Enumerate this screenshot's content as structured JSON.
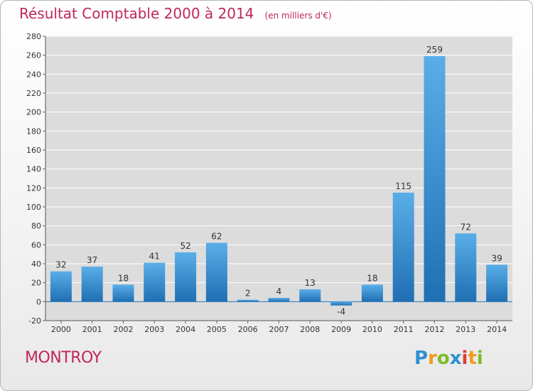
{
  "header": {
    "title": "Résultat Comptable 2000 à 2014",
    "subtitle": "(en milliers d'€)"
  },
  "footer": {
    "commune": "MONTROY",
    "logo_text": "Proxiti"
  },
  "colors": {
    "title": "#c0265d",
    "bar_light": "#5aaee8",
    "bar_dark": "#1f6fb3",
    "plot_bg": "#dcdcdc",
    "grid": "#ffffff"
  },
  "chart_data": {
    "type": "bar",
    "title": "Résultat Comptable 2000 à 2014",
    "subtitle": "(en milliers d'€)",
    "xlabel": "",
    "ylabel": "",
    "categories": [
      "2000",
      "2001",
      "2002",
      "2003",
      "2004",
      "2005",
      "2006",
      "2007",
      "2008",
      "2009",
      "2010",
      "2011",
      "2012",
      "2013",
      "2014"
    ],
    "values": [
      32,
      37,
      18,
      41,
      52,
      62,
      2,
      4,
      13,
      -4,
      18,
      115,
      259,
      72,
      39
    ],
    "ylim": [
      -20,
      280
    ],
    "yticks": [
      -20,
      0,
      20,
      40,
      60,
      80,
      100,
      120,
      140,
      160,
      180,
      200,
      220,
      240,
      260,
      280
    ],
    "grid": true,
    "data_labels": true,
    "legend": "none"
  }
}
